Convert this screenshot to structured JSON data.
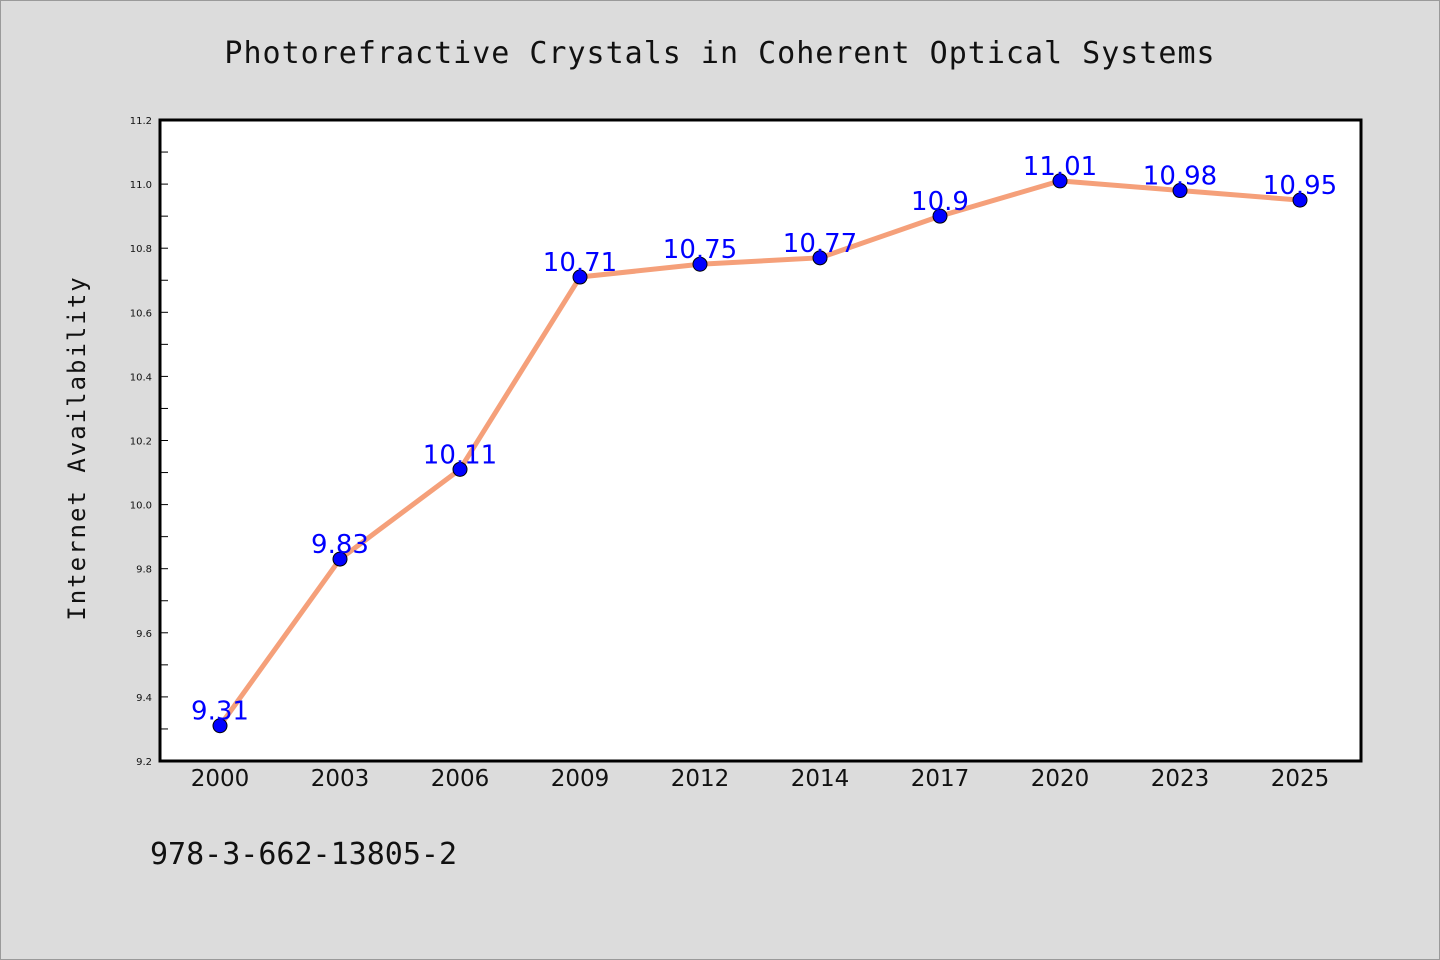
{
  "chart_data": {
    "type": "line",
    "title": "Photorefractive Crystals in Coherent Optical Systems",
    "xlabel": "",
    "ylabel": "Internet Availability",
    "categories": [
      "2000",
      "2003",
      "2006",
      "2009",
      "2012",
      "2014",
      "2017",
      "2020",
      "2023",
      "2025"
    ],
    "series": [
      {
        "values": [
          9.31,
          9.83,
          10.11,
          10.71,
          10.75,
          10.77,
          10.9,
          11.01,
          10.98,
          10.95
        ],
        "labels": [
          "9.31",
          "9.83",
          "10.11",
          "10.71",
          "10.75",
          "10.77",
          "10.9",
          "11.01",
          "10.98",
          "10.95"
        ]
      }
    ],
    "ylim": [
      9.2,
      11.2
    ],
    "yticks": [
      "9.2",
      "9.4",
      "9.6",
      "9.8",
      "10.0",
      "10.2",
      "10.4",
      "10.6",
      "10.8",
      "11.0",
      "11.2"
    ],
    "grid": false,
    "colors": {
      "line": "#f5a07a",
      "marker": "#0000ff",
      "marker_edge": "#000000",
      "value_labels": "#0000ff",
      "background": "#dcdcdc",
      "plot_area": "#ffffff"
    }
  },
  "footer": {
    "text": "978-3-662-13805-2"
  }
}
